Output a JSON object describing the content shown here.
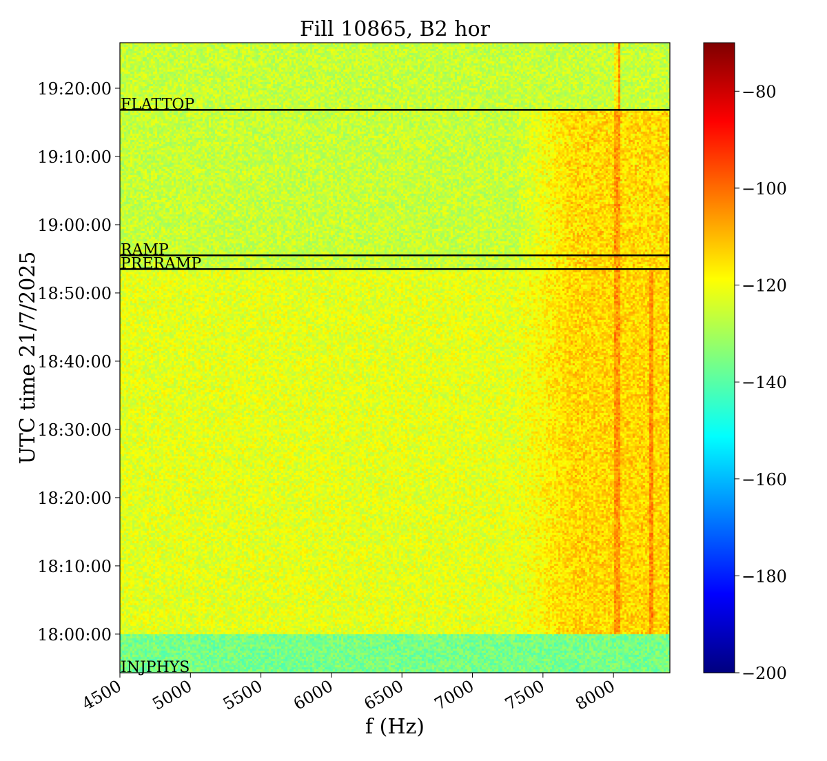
{
  "chart_data": {
    "type": "heatmap",
    "title": "Fill 10865, B2 hor",
    "xlabel": "f (Hz)",
    "ylabel": "UTC time 21/7/2025",
    "xlim": [
      4500,
      8400
    ],
    "x_ticks": [
      4500,
      5000,
      5500,
      6000,
      6500,
      7000,
      7500,
      8000
    ],
    "x_tick_labels": [
      "4500",
      "5000",
      "5500",
      "6000",
      "6500",
      "7000",
      "7500",
      "8000"
    ],
    "ylim": [
      "17:54:20",
      "19:26:40"
    ],
    "y_ticks": [
      "18:00:00",
      "18:10:00",
      "18:20:00",
      "18:30:00",
      "18:40:00",
      "18:50:00",
      "19:00:00",
      "19:10:00",
      "19:20:00"
    ],
    "colorbar": {
      "colormap": "jet",
      "range": [
        -200,
        -70
      ],
      "ticks": [
        -80,
        -100,
        -120,
        -140,
        -160,
        -180,
        -200
      ],
      "tick_labels": [
        "−80",
        "−100",
        "−120",
        "−140",
        "−160",
        "−180",
        "−200"
      ]
    },
    "beam_modes": [
      {
        "label": "FLATTOP",
        "time": "19:16:50"
      },
      {
        "label": "RAMP",
        "time": "18:55:30"
      },
      {
        "label": "PRERAMP",
        "time": "18:53:30"
      },
      {
        "label": "INJPHYS",
        "time": "17:54:20"
      }
    ],
    "levels": {
      "injphys_dB": -136,
      "preramp_dB": -122,
      "ramp_dB": -126,
      "flattop_dB": -126,
      "hot_region_freq_hz": 7300,
      "hot_region_dB": -112
    },
    "colors": {
      "jet": [
        "#00007f",
        "#0000ff",
        "#007fff",
        "#00ffff",
        "#7fff7f",
        "#ffff00",
        "#ff7f00",
        "#ff0000",
        "#7f0000"
      ],
      "mode_line": "#000000"
    }
  }
}
